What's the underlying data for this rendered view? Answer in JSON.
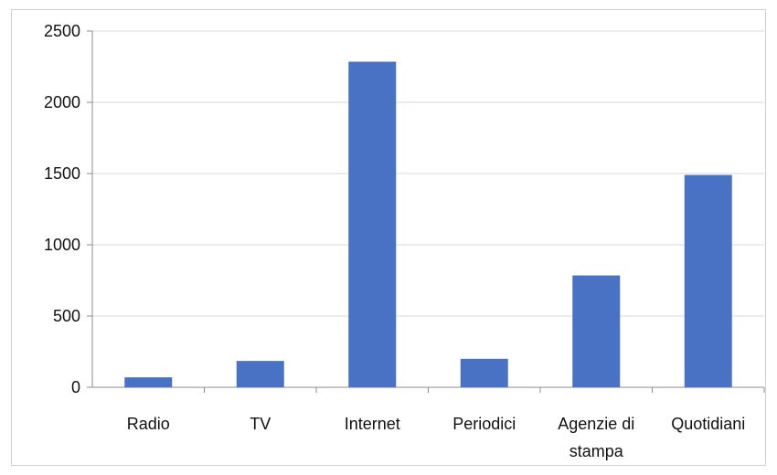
{
  "chart_data": {
    "type": "bar",
    "categories": [
      [
        "Radio"
      ],
      [
        "TV"
      ],
      [
        "Internet"
      ],
      [
        "Periodici"
      ],
      [
        "Agenzie di",
        "stampa"
      ],
      [
        "Quotidiani"
      ]
    ],
    "values": [
      70,
      185,
      2285,
      200,
      785,
      1490
    ],
    "ylim": [
      0,
      2500
    ],
    "yticks": [
      0,
      500,
      1000,
      1500,
      2000,
      2500
    ],
    "grid": true,
    "legend": "none",
    "bar_color": "#4a72c4",
    "grid_color": "#d9d9d9",
    "axis_color": "#8c8c8c"
  }
}
